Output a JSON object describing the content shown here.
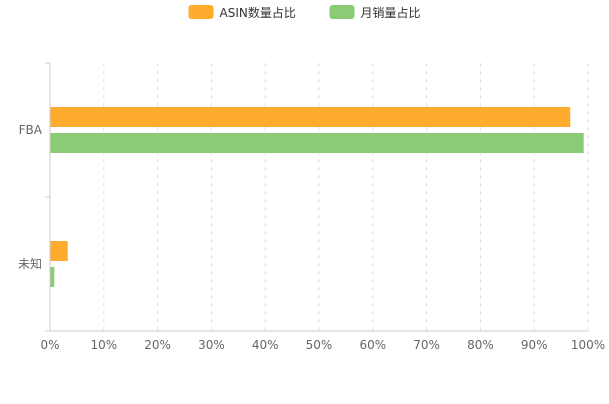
{
  "chart_data": {
    "type": "bar",
    "orientation": "horizontal",
    "categories": [
      "FBA",
      "未知"
    ],
    "series": [
      {
        "name": "ASIN数量占比",
        "color": "#FFAB2E",
        "values": [
          96.7,
          3.3
        ]
      },
      {
        "name": "月销量占比",
        "color": "#8BCB75",
        "values": [
          99.2,
          0.8
        ]
      }
    ],
    "xlim": [
      0,
      100
    ],
    "x_ticks": [
      "0%",
      "10%",
      "20%",
      "30%",
      "40%",
      "50%",
      "60%",
      "70%",
      "80%",
      "90%",
      "100%"
    ],
    "grid": true,
    "legend_position": "top-center"
  }
}
